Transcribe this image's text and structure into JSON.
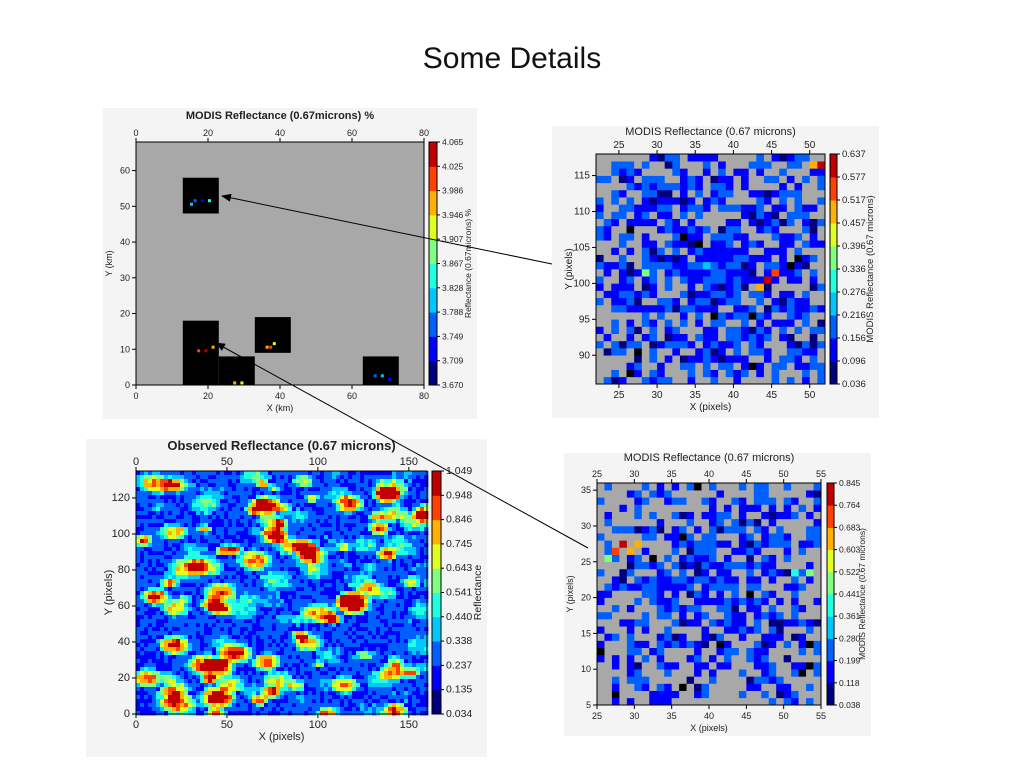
{
  "page": {
    "title": "Some Details"
  },
  "colors": {
    "panel_bg": "#f4f4f4",
    "land_gray": "#a8a8a8",
    "black": "#000000",
    "colormap": [
      "#00007f",
      "#0000ff",
      "#0060ff",
      "#00c8ff",
      "#20ffe0",
      "#80ff80",
      "#e0ff20",
      "#ffb000",
      "#ff4000",
      "#c00000"
    ]
  },
  "chart_data": [
    {
      "id": "modis-km",
      "type": "heatmap",
      "title": "MODIS Reflectance (0.67microns) %",
      "xlabel": "X (km)",
      "ylabel": "Y (km)",
      "xlim": [
        0,
        80
      ],
      "ylim": [
        0,
        68
      ],
      "x_ticks": [
        "0",
        "20",
        "40",
        "60",
        "80"
      ],
      "y_ticks": [
        "0",
        "10",
        "20",
        "30",
        "40",
        "50",
        "60"
      ],
      "colorbar_label": "Reflectance (0.67microns) %",
      "colorbar_ticks": [
        "4.065",
        "4.025",
        "3.986",
        "3.946",
        "3.907",
        "3.867",
        "3.828",
        "3.788",
        "3.749",
        "3.709",
        "3.670"
      ],
      "black_boxes": [
        {
          "x0": 13,
          "x1": 23,
          "y0": 48,
          "y1": 58
        },
        {
          "x0": 13,
          "x1": 23,
          "y0": 0,
          "y1": 18
        },
        {
          "x0": 23,
          "x1": 33,
          "y0": 0,
          "y1": 8
        },
        {
          "x0": 33,
          "x1": 43,
          "y0": 9,
          "y1": 19
        },
        {
          "x0": 63,
          "x1": 73,
          "y0": 0,
          "y1": 8
        }
      ],
      "pixel_clusters": [
        {
          "x": 16,
          "y": 52,
          "color": "#0060ff"
        },
        {
          "x": 18,
          "y": 52,
          "color": "#0000ff"
        },
        {
          "x": 20,
          "y": 52,
          "color": "#20ffe0"
        },
        {
          "x": 15,
          "y": 51,
          "color": "#00c8ff"
        },
        {
          "x": 17,
          "y": 10,
          "color": "#ff4000"
        },
        {
          "x": 19,
          "y": 10,
          "color": "#c00000"
        },
        {
          "x": 21,
          "y": 11,
          "color": "#ffb000"
        },
        {
          "x": 36,
          "y": 11,
          "color": "#ffb000"
        },
        {
          "x": 38,
          "y": 12,
          "color": "#e0ff20"
        },
        {
          "x": 37,
          "y": 11,
          "color": "#ff4000"
        },
        {
          "x": 27,
          "y": 1,
          "color": "#ffb000"
        },
        {
          "x": 29,
          "y": 1,
          "color": "#e0ff20"
        },
        {
          "x": 66,
          "y": 3,
          "color": "#0060ff"
        },
        {
          "x": 68,
          "y": 3,
          "color": "#00c8ff"
        },
        {
          "x": 70,
          "y": 2,
          "color": "#0000ff"
        }
      ]
    },
    {
      "id": "observed",
      "type": "heatmap",
      "title": "Observed Reflectance (0.67 microns)",
      "xlabel": "X (pixels)",
      "ylabel": "Y (pixels)",
      "xlim": [
        0,
        160
      ],
      "ylim": [
        0,
        135
      ],
      "x_ticks": [
        "0",
        "50",
        "100",
        "150"
      ],
      "y_ticks": [
        "0",
        "20",
        "40",
        "60",
        "80",
        "100",
        "120"
      ],
      "colorbar_label": "Reflectance",
      "colorbar_ticks": [
        "1.049",
        "0.948",
        "0.846",
        "0.745",
        "0.643",
        "0.541",
        "0.440",
        "0.338",
        "0.237",
        "0.135",
        "0.034"
      ],
      "vrange": [
        0.034,
        1.049
      ]
    },
    {
      "id": "modis-a",
      "type": "heatmap",
      "title": "MODIS Reflectance (0.67 microns)",
      "xlabel": "X (pixels)",
      "ylabel": "Y (pixels)",
      "xlim": [
        22,
        52
      ],
      "ylim": [
        86,
        118
      ],
      "x_ticks": [
        "25",
        "30",
        "35",
        "40",
        "45",
        "50"
      ],
      "y_ticks": [
        "90",
        "95",
        "100",
        "105",
        "110",
        "115"
      ],
      "colorbar_label": "MODIS Reflectance (0.67 microns)",
      "colorbar_ticks": [
        "0.637",
        "0.577",
        "0.517",
        "0.457",
        "0.396",
        "0.336",
        "0.276",
        "0.216",
        "0.156",
        "0.096",
        "0.036"
      ],
      "hotspots": [
        {
          "x": 44,
          "y": 100,
          "v": 0.577
        },
        {
          "x": 43,
          "y": 99,
          "v": 0.457
        },
        {
          "x": 45,
          "y": 101,
          "v": 0.517
        },
        {
          "x": 51,
          "y": 116,
          "v": 0.637
        },
        {
          "x": 50,
          "y": 116,
          "v": 0.457
        },
        {
          "x": 36,
          "y": 102,
          "v": 0.276
        },
        {
          "x": 28,
          "y": 101,
          "v": 0.396
        }
      ]
    },
    {
      "id": "modis-b",
      "type": "heatmap",
      "title": "MODIS Reflectance (0.67 microns)",
      "xlabel": "X (pixels)",
      "ylabel": "Y (pixels)",
      "xlim": [
        25,
        55
      ],
      "ylim": [
        5,
        36
      ],
      "x_ticks": [
        "25",
        "30",
        "35",
        "40",
        "45",
        "50",
        "55"
      ],
      "y_ticks": [
        "5",
        "10",
        "15",
        "20",
        "25",
        "30",
        "35"
      ],
      "colorbar_label": "MODIS Reflectance (0.67 microns)",
      "colorbar_ticks": [
        "0.845",
        "0.764",
        "0.683",
        "0.603",
        "0.522",
        "0.441",
        "0.361",
        "0.280",
        "0.199",
        "0.118",
        "0.038"
      ],
      "hotspots": [
        {
          "x": 27,
          "y": 26,
          "v": 0.764
        },
        {
          "x": 29,
          "y": 26,
          "v": 0.683
        },
        {
          "x": 30,
          "y": 27,
          "v": 0.603
        },
        {
          "x": 26,
          "y": 25,
          "v": 0.522
        },
        {
          "x": 28,
          "y": 27,
          "v": 0.845
        },
        {
          "x": 53,
          "y": 23,
          "v": 0.522
        },
        {
          "x": 51,
          "y": 23,
          "v": 0.441
        }
      ]
    }
  ]
}
